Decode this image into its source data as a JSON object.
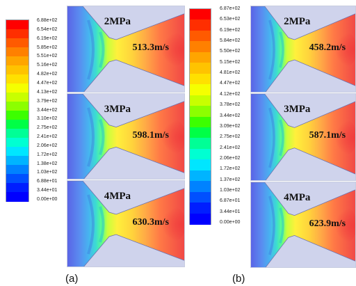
{
  "figure_a": {
    "caption": "(a)",
    "colorbar_ticks": [
      "6.88e+02",
      "6.54e+02",
      "6.19e+02",
      "5.85e+02",
      "5.51e+02",
      "5.16e+02",
      "4.82e+02",
      "4.47e+02",
      "4.13e+02",
      "3.79e+02",
      "3.44e+02",
      "3.10e+02",
      "2.75e+02",
      "2.41e+02",
      "2.06e+02",
      "1.72e+02",
      "1.38e+02",
      "1.03e+02",
      "6.88e+01",
      "3.44e+01",
      "0.00e+00"
    ],
    "panels": [
      {
        "pressure": "2MPa",
        "velocity": "513.3m/s"
      },
      {
        "pressure": "3MPa",
        "velocity": "598.1m/s"
      },
      {
        "pressure": "4MPa",
        "velocity": "630.3m/s"
      }
    ]
  },
  "figure_b": {
    "caption": "(b)",
    "colorbar_ticks": [
      "6.87e+02",
      "6.53e+02",
      "6.19e+02",
      "5.84e+02",
      "5.50e+02",
      "5.15e+02",
      "4.81e+02",
      "4.47e+02",
      "4.12e+02",
      "3.78e+02",
      "3.44e+02",
      "3.09e+02",
      "2.75e+02",
      "2.41e+02",
      "2.06e+02",
      "1.72e+02",
      "1.37e+02",
      "1.03e+02",
      "6.87e+01",
      "3.44e+01",
      "0.00e+00"
    ],
    "panels": [
      {
        "pressure": "2MPa",
        "velocity": "458.2m/s"
      },
      {
        "pressure": "3MPa",
        "velocity": "587.1m/s"
      },
      {
        "pressure": "4MPa",
        "velocity": "623.9m/s"
      }
    ]
  },
  "colormap": [
    "#ff0000",
    "#ff2e00",
    "#ff5a00",
    "#ff8000",
    "#ffa500",
    "#ffc300",
    "#ffe000",
    "#f5ff00",
    "#c8ff00",
    "#8cff00",
    "#3cff00",
    "#00ff46",
    "#00ff96",
    "#00ffd2",
    "#00e6ff",
    "#00b4ff",
    "#0082ff",
    "#0050ff",
    "#001eff",
    "#0000ff"
  ]
}
